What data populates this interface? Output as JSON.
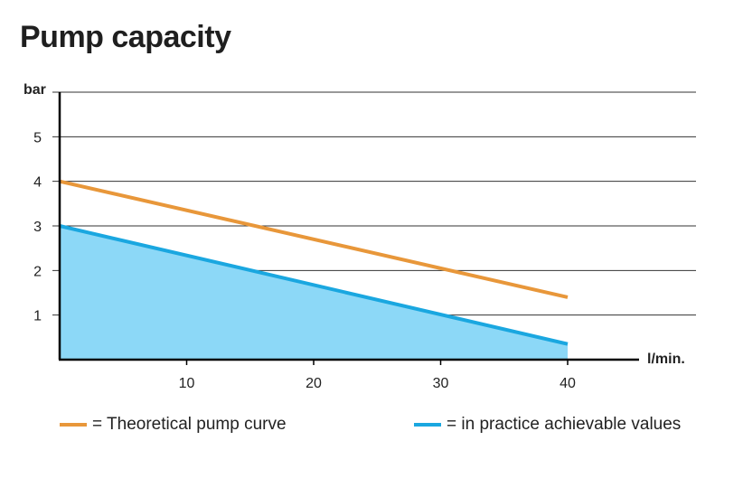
{
  "colors": {
    "theoretical": "#e8973a",
    "practical": "#1aa7e0",
    "practical_fill": "#8cd8f7",
    "axis": "#000000",
    "grid": "#333333"
  },
  "chart_data": {
    "type": "line",
    "title": "Pump capacity",
    "xlabel": "l/min.",
    "ylabel": "bar",
    "xlim": [
      0,
      46
    ],
    "ylim": [
      0,
      6
    ],
    "x_ticks": [
      10,
      20,
      30,
      40
    ],
    "y_ticks": [
      1,
      2,
      3,
      4,
      5
    ],
    "grid": true,
    "legend_position": "bottom",
    "series": [
      {
        "key": "theoretical",
        "legend": "= Theoretical pump curve",
        "x": [
          0,
          40
        ],
        "y": [
          4,
          1.4
        ],
        "filled": false
      },
      {
        "key": "practical",
        "legend": "= in practice achievable values",
        "x": [
          0,
          40
        ],
        "y": [
          3,
          0.35
        ],
        "filled": true
      }
    ]
  }
}
